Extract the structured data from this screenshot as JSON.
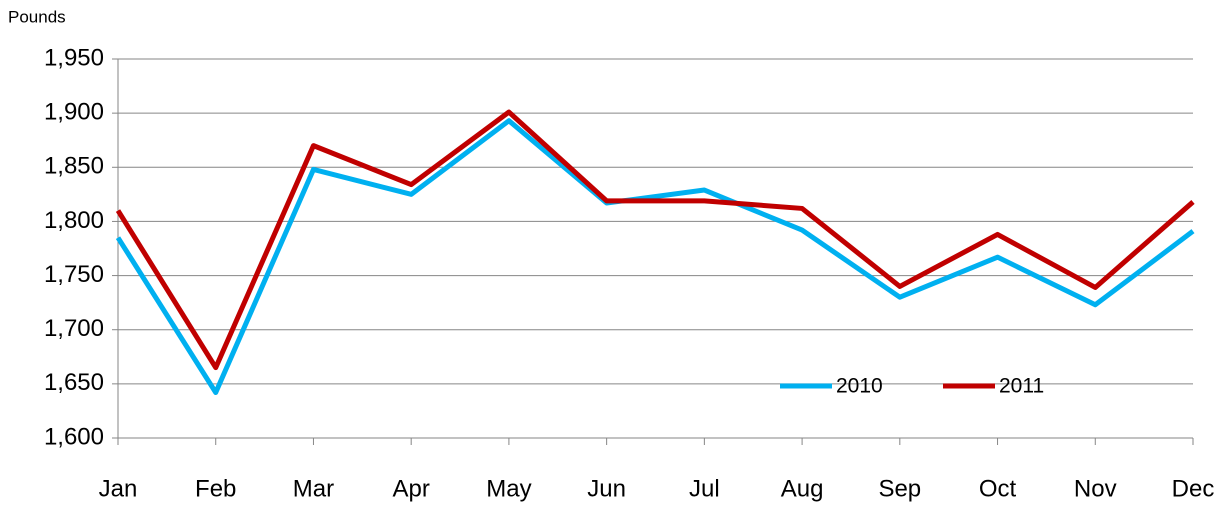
{
  "chart_data": {
    "type": "line",
    "y_label": "Pounds",
    "categories": [
      "Jan",
      "Feb",
      "Mar",
      "Apr",
      "May",
      "Jun",
      "Jul",
      "Aug",
      "Sep",
      "Oct",
      "Nov",
      "Dec"
    ],
    "series": [
      {
        "name": "2010",
        "color": "#00b0f0",
        "values": [
          1785,
          1642,
          1848,
          1825,
          1893,
          1817,
          1829,
          1792,
          1730,
          1767,
          1723,
          1791
        ]
      },
      {
        "name": "2011",
        "color": "#c00000",
        "values": [
          1810,
          1665,
          1870,
          1834,
          1901,
          1819,
          1819,
          1812,
          1740,
          1788,
          1739,
          1818
        ]
      }
    ],
    "ylim": [
      1600,
      1950
    ],
    "yticks": [
      {
        "value": 1600,
        "label": "1,600"
      },
      {
        "value": 1650,
        "label": "1,650"
      },
      {
        "value": 1700,
        "label": "1,700"
      },
      {
        "value": 1750,
        "label": "1,750"
      },
      {
        "value": 1800,
        "label": "1,800"
      },
      {
        "value": 1850,
        "label": "1,850"
      },
      {
        "value": 1900,
        "label": "1,900"
      },
      {
        "value": 1950,
        "label": "1,950"
      }
    ],
    "grid": true,
    "legend": "lower right"
  }
}
